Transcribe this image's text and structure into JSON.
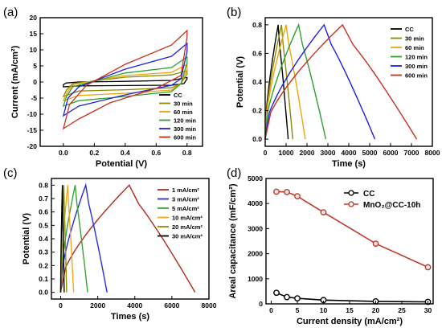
{
  "colors": {
    "cc": "#000000",
    "m30": "#8b8b00",
    "m60": "#f0a30a",
    "m120": "#2ea02e",
    "m300": "#1f1fe0",
    "m600": "#c8301e",
    "i1": "#b22a17",
    "i3": "#2a2ad8",
    "i5": "#35a335",
    "i10": "#f2a71b",
    "i20": "#8f8f00",
    "i30": "#000000",
    "mno2": "#c0392b"
  },
  "chart_data": [
    {
      "panel": "(a)",
      "type": "line",
      "xlabel": "Potential (V)",
      "ylabel": "Current (mA/cm²)",
      "xlim": [
        -0.15,
        0.9
      ],
      "ylim": [
        -20,
        20
      ],
      "xticks": [
        0.0,
        0.2,
        0.4,
        0.6,
        0.8
      ],
      "xticklabels": [
        "0.0",
        "0.2",
        "0.4",
        "0.6",
        "0.8"
      ],
      "yticks": [
        -20,
        -15,
        -10,
        -5,
        0,
        5,
        10,
        15,
        20
      ],
      "yticklabels": [
        "-20",
        "-15",
        "-10",
        "-5",
        "0",
        "5",
        "10",
        "15",
        "20"
      ],
      "legend_position": "bottom-right",
      "series": [
        {
          "name": "CC",
          "color_key": "cc",
          "loop": {
            "x": [
              0.0,
              0.02,
              0.1,
              0.4,
              0.7,
              0.8,
              0.8,
              0.78,
              0.7,
              0.4,
              0.1,
              0.0
            ],
            "y": [
              -0.8,
              -0.3,
              0.0,
              0.2,
              0.5,
              1.4,
              1.0,
              -0.5,
              -1.0,
              -1.1,
              -1.2,
              -1.5
            ]
          }
        },
        {
          "name": "30 min",
          "color_key": "m30",
          "loop": {
            "x": [
              0.0,
              0.02,
              0.06,
              0.4,
              0.7,
              0.8,
              0.8,
              0.76,
              0.7,
              0.4,
              0.1,
              0.0
            ],
            "y": [
              -4.5,
              -2.5,
              -0.5,
              1.5,
              2.2,
              3.5,
              2.5,
              -0.5,
              -1.8,
              -2.4,
              -2.8,
              -4.5
            ]
          }
        },
        {
          "name": "60 min",
          "color_key": "m60",
          "loop": {
            "x": [
              0.0,
              0.02,
              0.06,
              0.4,
              0.7,
              0.8,
              0.8,
              0.76,
              0.7,
              0.4,
              0.1,
              0.0
            ],
            "y": [
              -5.8,
              -3.5,
              -0.8,
              2.0,
              3.0,
              5.5,
              4.0,
              -0.5,
              -2.5,
              -3.5,
              -4.2,
              -5.8
            ]
          }
        },
        {
          "name": "120 min",
          "color_key": "m120",
          "loop": {
            "x": [
              0.0,
              0.02,
              0.06,
              0.4,
              0.7,
              0.8,
              0.8,
              0.76,
              0.7,
              0.4,
              0.1,
              0.0
            ],
            "y": [
              -7.5,
              -4.5,
              -1.5,
              2.8,
              4.5,
              7.8,
              6.0,
              -0.5,
              -3.0,
              -4.5,
              -5.8,
              -7.5
            ]
          }
        },
        {
          "name": "300 min",
          "color_key": "m300",
          "loop": {
            "x": [
              0.0,
              0.03,
              0.1,
              0.4,
              0.7,
              0.8,
              0.8,
              0.76,
              0.7,
              0.4,
              0.1,
              0.0
            ],
            "y": [
              -10.5,
              -5.0,
              -1.5,
              4.0,
              8.0,
              12.0,
              9.5,
              1.0,
              -1.0,
              -4.0,
              -7.5,
              -10.5
            ]
          }
        },
        {
          "name": "600 min",
          "color_key": "m600",
          "loop": {
            "x": [
              0.0,
              0.04,
              0.15,
              0.4,
              0.7,
              0.8,
              0.8,
              0.76,
              0.6,
              0.3,
              0.1,
              0.0
            ],
            "y": [
              -14.5,
              -7.0,
              -1.0,
              5.5,
              11.5,
              16.0,
              14.0,
              2.0,
              -2.0,
              -6.5,
              -11.5,
              -14.5
            ]
          }
        }
      ]
    },
    {
      "panel": "(b)",
      "type": "line",
      "xlabel": "Time (s)",
      "ylabel": "Potential (V)",
      "xlim": [
        0,
        8000
      ],
      "ylim": [
        -0.05,
        0.85
      ],
      "xticks": [
        0,
        1000,
        2000,
        3000,
        4000,
        5000,
        6000,
        7000,
        8000
      ],
      "xticklabels": [
        "0",
        "1000",
        "2000",
        "3000",
        "4000",
        "5000",
        "6000",
        "7000",
        "8000"
      ],
      "yticks": [
        0.0,
        0.2,
        0.4,
        0.6,
        0.8
      ],
      "yticklabels": [
        "0.0",
        "0.2",
        "0.4",
        "0.6",
        "0.8"
      ],
      "legend_position": "top-right",
      "series": [
        {
          "name": "CC",
          "color_key": "cc",
          "charge_end": 620,
          "discharge_end": 1100
        },
        {
          "name": "30 min",
          "color_key": "m30",
          "charge_end": 780,
          "discharge_end": 1320
        },
        {
          "name": "60 min",
          "color_key": "m60",
          "charge_end": 1000,
          "discharge_end": 1920
        },
        {
          "name": "120 min",
          "color_key": "m120",
          "charge_end": 1600,
          "discharge_end": 2900
        },
        {
          "name": "300 min",
          "color_key": "m300",
          "charge_end": 2820,
          "discharge_end": 5250
        },
        {
          "name": "600 min",
          "color_key": "m600",
          "charge_end": 3700,
          "discharge_end": 7250
        }
      ]
    },
    {
      "panel": "(c)",
      "type": "line",
      "xlabel": "Times (s)",
      "ylabel": "Potential (V)",
      "xlim": [
        -500,
        8000
      ],
      "ylim": [
        -0.05,
        0.85
      ],
      "xticks": [
        0,
        2000,
        4000,
        6000,
        8000
      ],
      "xticklabels": [
        "0",
        "2000",
        "4000",
        "6000",
        "8000"
      ],
      "yticks": [
        0.0,
        0.1,
        0.2,
        0.3,
        0.4,
        0.5,
        0.6,
        0.7,
        0.8
      ],
      "yticklabels": [
        "0.0",
        "0.1",
        "0.2",
        "0.3",
        "0.4",
        "0.5",
        "0.6",
        "0.7",
        "0.8"
      ],
      "legend_position": "top-right",
      "series": [
        {
          "name": "1 mA/cm²",
          "color_key": "i1",
          "charge_end": 3700,
          "discharge_end": 7250
        },
        {
          "name": "3 mA/cm²",
          "color_key": "i3",
          "charge_end": 1350,
          "discharge_end": 2500
        },
        {
          "name": "5 mA/cm²",
          "color_key": "i5",
          "charge_end": 780,
          "discharge_end": 1450
        },
        {
          "name": "10 mA/cm²",
          "color_key": "i10",
          "charge_end": 380,
          "discharge_end": 700
        },
        {
          "name": "20 mA/cm²",
          "color_key": "i20",
          "charge_end": 170,
          "discharge_end": 320
        },
        {
          "name": "30 mA/cm²",
          "color_key": "i30",
          "charge_end": 90,
          "discharge_end": 190
        }
      ]
    },
    {
      "panel": "(d)",
      "type": "line",
      "xlabel": "Current density (mA/cm²)",
      "ylabel": "Areal capacitance (mF/cm²)",
      "xlim": [
        -1,
        31
      ],
      "ylim": [
        0,
        5000
      ],
      "xticks": [
        0,
        5,
        10,
        15,
        20,
        25,
        30
      ],
      "xticklabels": [
        "0",
        "5",
        "10",
        "15",
        "20",
        "25",
        "30"
      ],
      "yticks": [
        0,
        1000,
        2000,
        3000,
        4000,
        5000
      ],
      "yticklabels": [
        "0",
        "1000",
        "2000",
        "3000",
        "4000",
        "5000"
      ],
      "legend_position": "top-right",
      "series": [
        {
          "name": "CC",
          "color_key": "cc",
          "x": [
            1,
            3,
            5,
            10,
            20,
            30
          ],
          "y": [
            440,
            270,
            220,
            150,
            100,
            80
          ]
        },
        {
          "name": "MnO₂@CC-10h",
          "color_key": "mno2",
          "x": [
            1,
            3,
            5,
            10,
            20,
            30
          ],
          "y": [
            4470,
            4460,
            4290,
            3650,
            2400,
            1460
          ]
        }
      ]
    }
  ]
}
